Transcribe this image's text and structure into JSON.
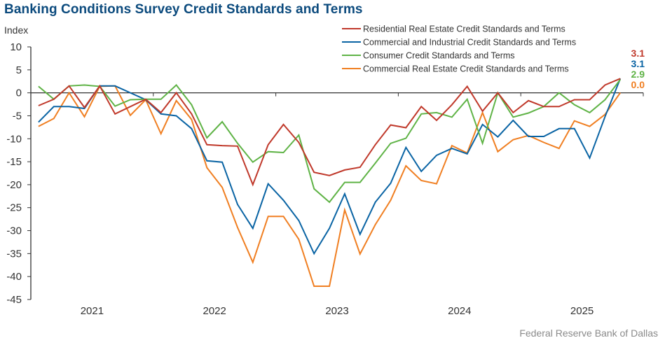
{
  "chart_data": {
    "type": "line",
    "title": "Banking Conditions Survey Credit Standards and Terms",
    "ylabel": "Index",
    "xlabel": "",
    "source": "Federal Reserve Bank of Dallas",
    "ylim": [
      -45,
      10
    ],
    "yticks": [
      10,
      5,
      0,
      -5,
      -10,
      -15,
      -20,
      -25,
      -30,
      -35,
      -40,
      -45
    ],
    "x_range_years": [
      2021,
      2026
    ],
    "xtick_labels": [
      "2021",
      "2022",
      "2023",
      "2024",
      "2025"
    ],
    "points_per_year": 8,
    "grid": false,
    "legend_position": "top-right",
    "series": [
      {
        "name": "Residential Real Estate Credit Standards and Terms",
        "color": "#c0392b",
        "end_label": "3.1",
        "values": [
          -2.8,
          -1.4,
          1.5,
          -3.2,
          1.5,
          -4.6,
          -3.0,
          -1.4,
          -4.3,
          0.0,
          -4.6,
          -11.3,
          -11.5,
          -11.6,
          -20.0,
          -11.3,
          -6.9,
          -10.8,
          -17.3,
          -18.0,
          -16.8,
          -16.2,
          -11.3,
          -7.0,
          -7.6,
          -3.0,
          -6.0,
          -2.6,
          1.4,
          -4.0,
          0.0,
          -4.3,
          -1.7,
          -3.0,
          -3.0,
          -1.5,
          -1.5,
          1.7,
          3.1
        ]
      },
      {
        "name": "Commercial and Industrial Credit Standards and Terms",
        "color": "#0a64a4",
        "end_label": "3.1",
        "values": [
          -6.4,
          -3.0,
          -3.0,
          -3.4,
          1.5,
          1.5,
          0.0,
          -1.5,
          -4.6,
          -5.0,
          -7.8,
          -14.8,
          -15.1,
          -24.3,
          -29.5,
          -19.8,
          -23.4,
          -27.8,
          -35.0,
          -29.5,
          -22.0,
          -30.8,
          -23.8,
          -19.7,
          -11.9,
          -17.1,
          -13.6,
          -12.1,
          -13.3,
          -6.9,
          -9.6,
          -6.0,
          -9.5,
          -9.5,
          -7.8,
          -7.8,
          -14.2,
          -5.2,
          3.1
        ]
      },
      {
        "name": "Consumer Credit Standards and Terms",
        "color": "#5fb346",
        "end_label": "2.9",
        "values": [
          1.4,
          -1.4,
          1.5,
          1.7,
          1.4,
          -2.9,
          -1.5,
          -1.4,
          -1.4,
          1.7,
          -2.6,
          -9.8,
          -6.3,
          -11.0,
          -15.1,
          -12.8,
          -13.0,
          -9.2,
          -20.9,
          -23.8,
          -19.5,
          -19.5,
          -15.3,
          -11.0,
          -9.9,
          -4.6,
          -4.3,
          -5.3,
          -1.4,
          -11.0,
          0.0,
          -5.3,
          -4.4,
          -3.0,
          0.0,
          -2.6,
          -4.3,
          -1.5,
          2.9
        ]
      },
      {
        "name": "Commercial Real Estate Credit Standards and Terms",
        "color": "#f07f22",
        "end_label": "0.0",
        "values": [
          -7.3,
          -5.6,
          0.0,
          -5.2,
          1.4,
          1.5,
          -4.9,
          -1.5,
          -8.9,
          -1.7,
          -5.8,
          -16.3,
          -20.6,
          -29.3,
          -36.9,
          -26.9,
          -26.9,
          -31.9,
          -42.1,
          -42.1,
          -25.5,
          -35.1,
          -28.7,
          -23.4,
          -15.9,
          -19.1,
          -19.8,
          -11.5,
          -13.1,
          -4.3,
          -12.8,
          -10.2,
          -9.3,
          -10.8,
          -12.1,
          -6.1,
          -7.3,
          -4.7,
          0.0
        ]
      }
    ]
  }
}
